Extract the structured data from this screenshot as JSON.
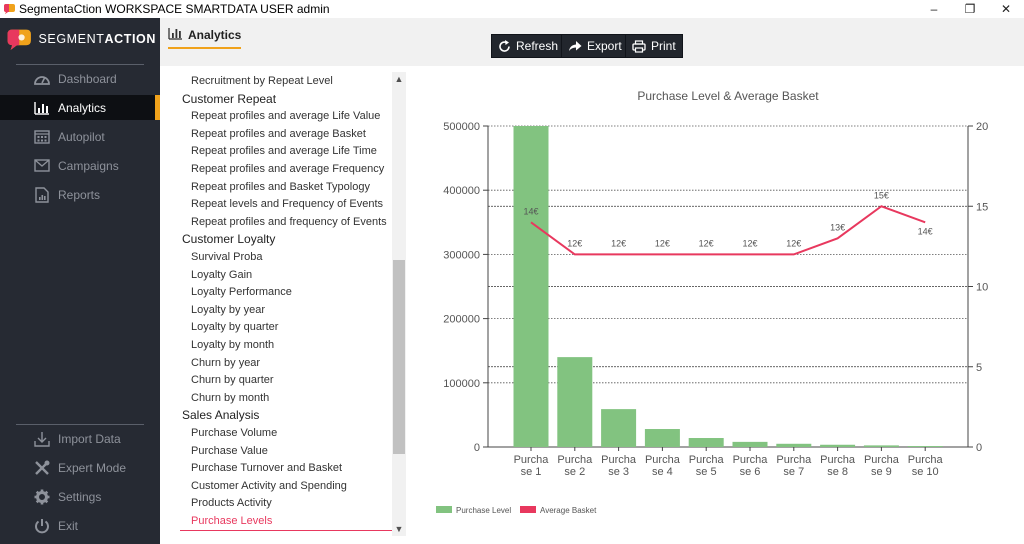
{
  "window": {
    "title": "SegmentaCtion WORKSPACE SMARTDATA USER admin",
    "minimize": "–",
    "maximize": "❐",
    "close": "✕"
  },
  "brand": {
    "prefix": "SEGMENT",
    "bold": "ACTION",
    "accent_color": "#f0a21b"
  },
  "nav_main": [
    {
      "label": "Dashboard",
      "icon": "gauge-icon",
      "active": false
    },
    {
      "label": "Analytics",
      "icon": "bar-chart-icon",
      "active": true
    },
    {
      "label": "Autopilot",
      "icon": "calendar-grid-icon",
      "active": false
    },
    {
      "label": "Campaigns",
      "icon": "envelope-icon",
      "active": false
    },
    {
      "label": "Reports",
      "icon": "report-icon",
      "active": false
    }
  ],
  "nav_bottom": [
    {
      "label": "Import Data",
      "icon": "download-icon"
    },
    {
      "label": "Expert Mode",
      "icon": "tools-icon"
    },
    {
      "label": "Settings",
      "icon": "gear-icon"
    },
    {
      "label": "Exit",
      "icon": "power-icon"
    }
  ],
  "header": {
    "title": "Analytics",
    "buttons": [
      {
        "label": "Refresh",
        "icon": "refresh-icon"
      },
      {
        "label": "Export",
        "icon": "share-arrow-icon"
      },
      {
        "label": "Print",
        "icon": "printer-icon"
      }
    ]
  },
  "report_list": [
    {
      "kind": "item",
      "label": "Recruitment by Repeat Level"
    },
    {
      "kind": "head",
      "label": "Customer Repeat"
    },
    {
      "kind": "item",
      "label": "Repeat profiles and average Life Value"
    },
    {
      "kind": "item",
      "label": "Repeat profiles and average Basket"
    },
    {
      "kind": "item",
      "label": "Repeat profiles and average Life Time"
    },
    {
      "kind": "item",
      "label": "Repeat profiles and average Frequency"
    },
    {
      "kind": "item",
      "label": "Repeat profiles and Basket Typology"
    },
    {
      "kind": "item",
      "label": "Repeat levels and Frequency of Events"
    },
    {
      "kind": "item",
      "label": "Repeat profiles and frequency of Events"
    },
    {
      "kind": "head",
      "label": "Customer Loyalty"
    },
    {
      "kind": "item",
      "label": "Survival Proba"
    },
    {
      "kind": "item",
      "label": "Loyalty Gain"
    },
    {
      "kind": "item",
      "label": "Loyalty Performance"
    },
    {
      "kind": "item",
      "label": "Loyalty by year"
    },
    {
      "kind": "item",
      "label": "Loyalty by quarter"
    },
    {
      "kind": "item",
      "label": "Loyalty by month"
    },
    {
      "kind": "item",
      "label": "Churn by year"
    },
    {
      "kind": "item",
      "label": "Churn by quarter"
    },
    {
      "kind": "item",
      "label": "Churn by month"
    },
    {
      "kind": "head",
      "label": "Sales Analysis"
    },
    {
      "kind": "item",
      "label": "Purchase Volume"
    },
    {
      "kind": "item",
      "label": "Purchase Value"
    },
    {
      "kind": "item",
      "label": "Purchase Turnover and Basket"
    },
    {
      "kind": "item",
      "label": "Customer Activity and Spending"
    },
    {
      "kind": "item",
      "label": "Products Activity"
    },
    {
      "kind": "item",
      "label": "Purchase Levels",
      "selected": true
    }
  ],
  "scroll_arrows": {
    "up": "▲",
    "down": "▼"
  },
  "chart_data": {
    "type": "bar",
    "title": "Purchase Level & Average Basket",
    "categories": [
      [
        "Purcha",
        "se 1"
      ],
      [
        "Purcha",
        "se 2"
      ],
      [
        "Purcha",
        "se 3"
      ],
      [
        "Purcha",
        "se 4"
      ],
      [
        "Purcha",
        "se 5"
      ],
      [
        "Purcha",
        "se 6"
      ],
      [
        "Purcha",
        "se 7"
      ],
      [
        "Purcha",
        "se 8"
      ],
      [
        "Purcha",
        "se 9"
      ],
      [
        "Purcha",
        "se 10"
      ]
    ],
    "series": [
      {
        "name": "Purchase Level",
        "kind": "bar",
        "axis": "left",
        "color": "#82c380",
        "values": [
          500000,
          140000,
          59000,
          28000,
          14000,
          8000,
          5000,
          3500,
          2500,
          1500
        ]
      },
      {
        "name": "Average Basket",
        "kind": "line",
        "axis": "right",
        "color": "#e8385e",
        "values": [
          14,
          12,
          12,
          12,
          12,
          12,
          12,
          13,
          15,
          14
        ],
        "labels": [
          "14€",
          "12€",
          "12€",
          "12€",
          "12€",
          "12€",
          "12€",
          "13€",
          "15€",
          "14€"
        ]
      }
    ],
    "y_left": {
      "min": 0,
      "max": 500000,
      "ticks": [
        0,
        100000,
        200000,
        300000,
        400000,
        500000
      ]
    },
    "y_right": {
      "min": 0,
      "max": 20,
      "ticks": [
        0,
        5,
        10,
        15,
        20
      ]
    },
    "grid": true,
    "legend_position": "bottom-left"
  }
}
